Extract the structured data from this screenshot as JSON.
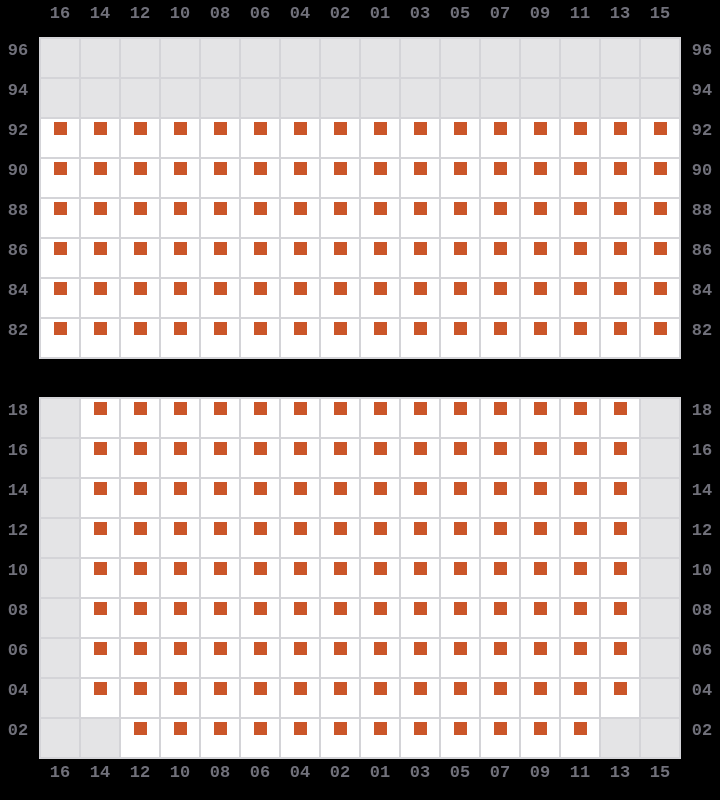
{
  "colors": {
    "background": "#000000",
    "label_text": "#70707a",
    "grid_line": "#d4d4d8",
    "cell_available": "#ffffff",
    "cell_blocked": "#e4e4e6",
    "seat_marker": "#cb5629"
  },
  "chart_data": {
    "type": "heatmap",
    "description": "Seat map grid: two panels; '1' = white cell with orange seat marker, '0' = grey blocked cell",
    "columns": [
      "16",
      "14",
      "12",
      "10",
      "08",
      "06",
      "04",
      "02",
      "01",
      "03",
      "05",
      "07",
      "09",
      "11",
      "13",
      "15"
    ],
    "cell_states": {
      "1": "seat",
      "0": "blocked"
    },
    "panels": [
      {
        "name": "upper",
        "row_labels": [
          "96",
          "94",
          "92",
          "90",
          "88",
          "86",
          "84",
          "82"
        ],
        "cells": [
          "0000000000000000",
          "0000000000000000",
          "1111111111111111",
          "1111111111111111",
          "1111111111111111",
          "1111111111111111",
          "1111111111111111",
          "1111111111111111"
        ]
      },
      {
        "name": "lower",
        "row_labels": [
          "18",
          "16",
          "14",
          "12",
          "10",
          "08",
          "06",
          "04",
          "02"
        ],
        "cells": [
          "0111111111111110",
          "0111111111111110",
          "0111111111111110",
          "0111111111111110",
          "0111111111111110",
          "0111111111111110",
          "0111111111111110",
          "0111111111111110",
          "0011111111111100"
        ]
      }
    ]
  }
}
